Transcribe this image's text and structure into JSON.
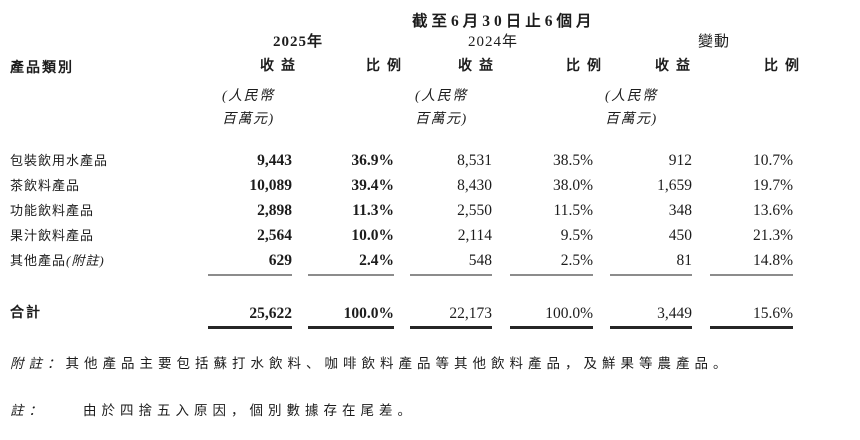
{
  "header": {
    "period": "截至6月30日止6個月",
    "groups": {
      "y2025": "2025年",
      "y2024": "2024年",
      "change": "變動"
    },
    "category_label": "產品類別",
    "revenue_label": "收益",
    "proportion_label": "比例",
    "unit_line1": "(人民幣",
    "unit_line2": "百萬元)"
  },
  "table": {
    "rows": [
      {
        "label": "包裝飲用水產品",
        "note": "",
        "r25": "9,443",
        "p25": "36.9%",
        "r24": "8,531",
        "p24": "38.5%",
        "rch": "912",
        "pch": "10.7%"
      },
      {
        "label": "茶飲料產品",
        "note": "",
        "r25": "10,089",
        "p25": "39.4%",
        "r24": "8,430",
        "p24": "38.0%",
        "rch": "1,659",
        "pch": "19.7%"
      },
      {
        "label": "功能飲料產品",
        "note": "",
        "r25": "2,898",
        "p25": "11.3%",
        "r24": "2,550",
        "p24": "11.5%",
        "rch": "348",
        "pch": "13.6%"
      },
      {
        "label": "果汁飲料產品",
        "note": "",
        "r25": "2,564",
        "p25": "10.0%",
        "r24": "2,114",
        "p24": "9.5%",
        "rch": "450",
        "pch": "21.3%"
      },
      {
        "label": "其他產品",
        "note": "(附註)",
        "r25": "629",
        "p25": "2.4%",
        "r24": "548",
        "p24": "2.5%",
        "rch": "81",
        "pch": "14.8%"
      }
    ],
    "total": {
      "label": "合計",
      "r25": "25,622",
      "p25": "100.0%",
      "r24": "22,173",
      "p24": "100.0%",
      "rch": "3,449",
      "pch": "15.6%"
    }
  },
  "footnotes": [
    {
      "prefix": "附註：",
      "text": "其他產品主要包括蘇打水飲料、咖啡飲料產品等其他飲料產品，及鮮果等農產品。"
    },
    {
      "prefix": "註：",
      "text": "由於四捨五入原因，個別數據存在尾差。"
    }
  ],
  "colors": {
    "background": "#ffffff",
    "text": "#1c1c1c",
    "thin_rule": "#8c8c8c",
    "thick_rule": "#262626"
  }
}
